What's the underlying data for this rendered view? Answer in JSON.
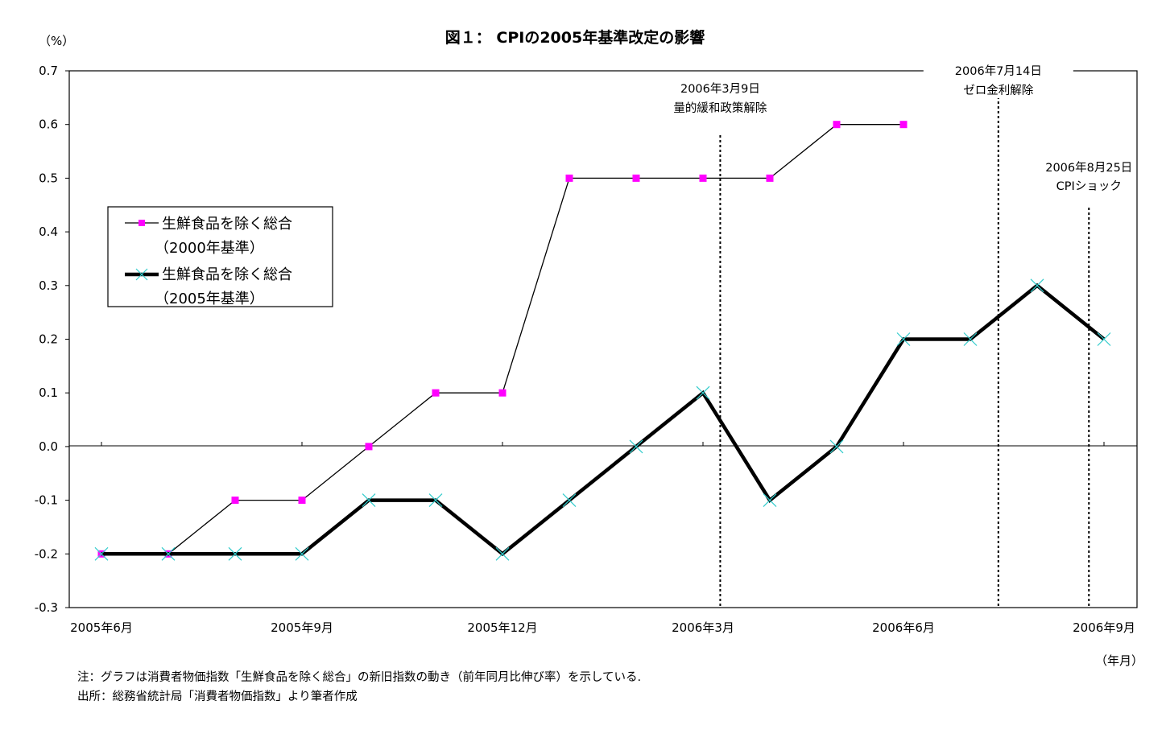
{
  "chart_data": {
    "type": "line",
    "title": "図１：  CPIの2005年基準改定の影響",
    "ylabel": "（%）",
    "xlabel": "（年月）",
    "ylim": [
      -0.3,
      0.7
    ],
    "y_ticks": [
      "0.7",
      "0.6",
      "0.5",
      "0.4",
      "0.3",
      "0.2",
      "0.1",
      "0.0",
      "-0.1",
      "-0.2",
      "-0.3"
    ],
    "x": [
      "2005-06",
      "2005-07",
      "2005-08",
      "2005-09",
      "2005-10",
      "2005-11",
      "2005-12",
      "2006-01",
      "2006-02",
      "2006-03",
      "2006-04",
      "2006-05",
      "2006-06",
      "2006-07",
      "2006-08",
      "2006-09"
    ],
    "x_tick_labels": [
      "2005年6月",
      "2005年9月",
      "2005年12月",
      "2006年3月",
      "2006年6月",
      "2006年9月"
    ],
    "grid": false,
    "legend_position": "upper-left",
    "series": [
      {
        "name_line1": "生鮮食品を除く総合",
        "name_line2": "（2000年基準）",
        "color": "#ff00ff",
        "marker": "square",
        "values": [
          -0.2,
          -0.2,
          -0.1,
          -0.1,
          0.0,
          0.1,
          0.1,
          0.5,
          0.5,
          0.5,
          0.5,
          0.6,
          0.6,
          null,
          null,
          null
        ]
      },
      {
        "name_line1": "生鮮食品を除く総合",
        "name_line2": "（2005年基準）",
        "color": "#000000",
        "marker_color": "#33cccc",
        "marker": "x",
        "values": [
          -0.2,
          -0.2,
          -0.2,
          -0.2,
          -0.1,
          -0.1,
          -0.2,
          -0.1,
          0.0,
          0.1,
          -0.1,
          0.0,
          0.2,
          0.2,
          0.3,
          0.2
        ]
      }
    ],
    "events": [
      {
        "date_label": "2006年3月9日",
        "label": "量的緩和政策解除"
      },
      {
        "date_label": "2006年7月14日",
        "label": "ゼロ金利解除"
      },
      {
        "date_label": "2006年8月25日",
        "label": "CPIショック"
      }
    ]
  },
  "notes": {
    "note1": "注：グラフは消費者物価指数「生鮮食品を除く総合」の新旧指数の動き（前年同月比伸び率）を示している.",
    "source": "出所：総務省統計局「消費者物価指数」より筆者作成"
  }
}
